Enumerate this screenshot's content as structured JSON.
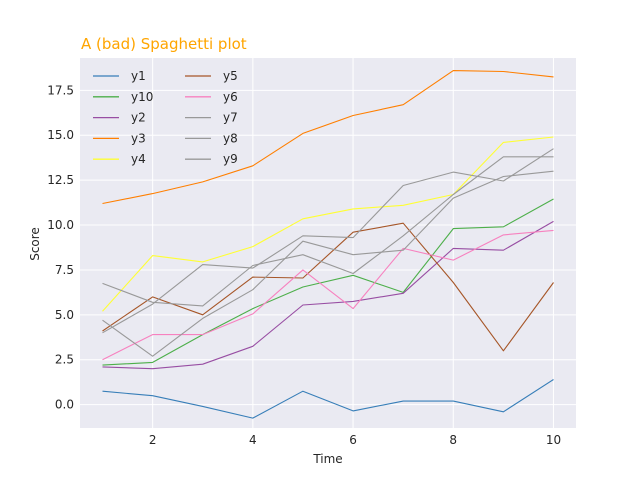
{
  "chart_data": {
    "type": "line",
    "title": "A (bad) Spaghetti plot",
    "title_color": "#ffa500",
    "xlabel": "Time",
    "ylabel": "Score",
    "xlim": [
      0.55,
      10.45
    ],
    "ylim": [
      -1.3,
      19.3
    ],
    "xticks": [
      2,
      4,
      6,
      8,
      10
    ],
    "yticks": [
      0.0,
      2.5,
      5.0,
      7.5,
      10.0,
      12.5,
      15.0,
      17.5
    ],
    "ytick_labels": [
      "0.0",
      "2.5",
      "5.0",
      "7.5",
      "10.0",
      "12.5",
      "15.0",
      "17.5"
    ],
    "grid": true,
    "style": "seaborn-darkgrid",
    "plot_background": "#eaeaf2",
    "legend_position": "top-left",
    "legend_columns": 2,
    "x": [
      1,
      2,
      3,
      4,
      5,
      6,
      7,
      8,
      9,
      10
    ],
    "series": [
      {
        "name": "y1",
        "color": "#377eb8",
        "values": [
          0.75,
          0.5,
          -0.1,
          -0.75,
          0.75,
          -0.35,
          0.2,
          0.2,
          -0.4,
          1.4
        ]
      },
      {
        "name": "y10",
        "color": "#4daf4a",
        "values": [
          2.2,
          2.35,
          3.9,
          5.35,
          6.55,
          7.2,
          6.25,
          9.8,
          9.9,
          11.45
        ]
      },
      {
        "name": "y2",
        "color": "#984ea3",
        "values": [
          2.1,
          2.0,
          2.25,
          3.25,
          5.55,
          5.75,
          6.2,
          8.7,
          8.6,
          10.2
        ]
      },
      {
        "name": "y3",
        "color": "#ff7f00",
        "values": [
          11.2,
          11.75,
          12.4,
          13.3,
          15.1,
          16.1,
          16.7,
          18.6,
          18.55,
          18.25
        ]
      },
      {
        "name": "y4",
        "color": "#ffff33",
        "values": [
          5.2,
          8.3,
          7.95,
          8.8,
          10.35,
          10.9,
          11.1,
          11.7,
          14.6,
          14.9
        ]
      },
      {
        "name": "y5",
        "color": "#a65628",
        "values": [
          4.1,
          6.0,
          5.0,
          7.1,
          7.05,
          9.6,
          10.1,
          6.8,
          3.0,
          6.8
        ]
      },
      {
        "name": "y6",
        "color": "#f781bf",
        "values": [
          2.5,
          3.9,
          3.9,
          5.05,
          7.5,
          5.35,
          8.7,
          8.05,
          9.45,
          9.7
        ]
      },
      {
        "name": "y7",
        "color": "#999999",
        "values": [
          6.75,
          5.7,
          5.5,
          7.75,
          8.35,
          7.3,
          9.4,
          11.7,
          13.8,
          13.8
        ]
      },
      {
        "name": "y8",
        "color": "#999999",
        "values": [
          4.0,
          5.6,
          7.8,
          7.6,
          9.4,
          9.3,
          12.2,
          12.95,
          12.45,
          14.25
        ]
      },
      {
        "name": "y9",
        "color": "#999999",
        "values": [
          4.7,
          2.7,
          4.8,
          6.4,
          9.1,
          8.35,
          8.6,
          11.5,
          12.7,
          13.0
        ]
      }
    ]
  }
}
